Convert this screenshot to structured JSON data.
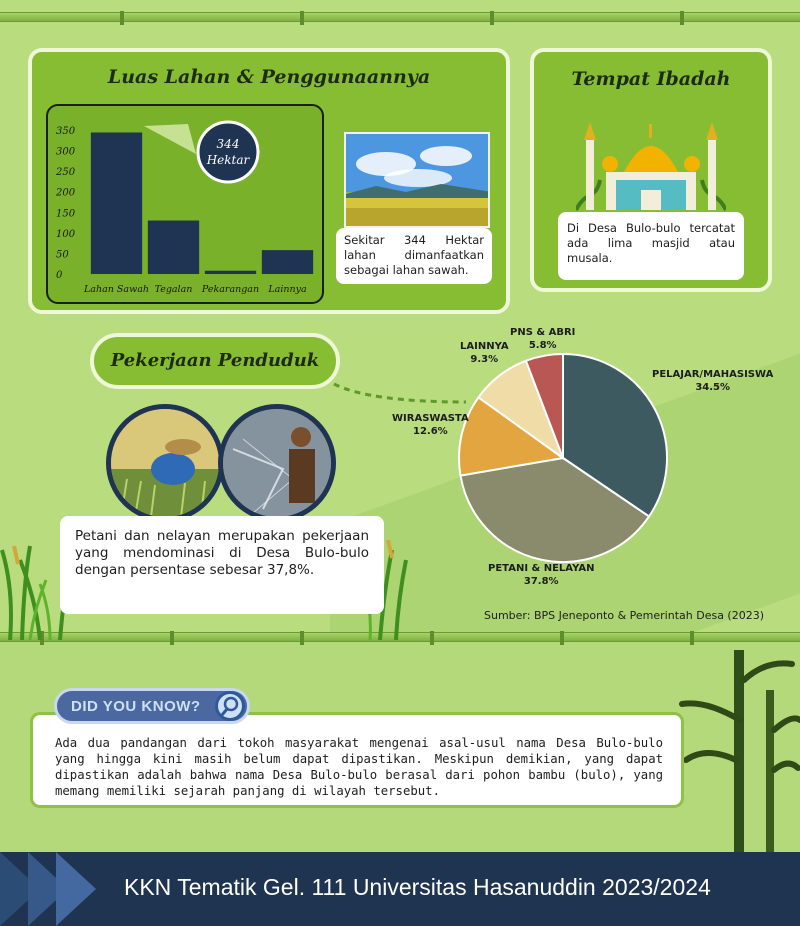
{
  "land": {
    "title": "Luas Lahan & Penggunaannya",
    "callout_value": "344",
    "callout_unit": "Hektar",
    "caption": "Sekitar 344 Hektar lahan dimanfaatkan sebagai lahan sawah."
  },
  "chart_data": {
    "type": "bar",
    "categories": [
      "Lahan Sawah",
      "Tegalan",
      "Pekarangan",
      "Lainnya"
    ],
    "values": [
      344,
      130,
      8,
      58
    ],
    "ylim": [
      0,
      350
    ],
    "yticks": [
      0,
      50,
      100,
      150,
      200,
      250,
      300,
      350
    ],
    "bar_color": "#1f3352"
  },
  "worship": {
    "title": "Tempat Ibadah",
    "caption": "Di Desa Bulo-bulo tercatat ada lima masjid atau musala."
  },
  "occupation": {
    "title": "Pekerjaan Penduduk",
    "caption": "Petani dan nelayan merupakan pekerjaan yang mendominasi di Desa Bulo-bulo dengan persentase sebesar 37,8%.",
    "source": "Sumber: BPS Jeneponto & Pemerintah Desa (2023)",
    "pie": [
      {
        "name": "PELAJAR/MAHASISWA",
        "value": 34.5,
        "label": "34.5%",
        "color": "#3d5a61"
      },
      {
        "name": "PETANI & NELAYAN",
        "value": 37.8,
        "label": "37.8%",
        "color": "#8a8a6c"
      },
      {
        "name": "WIRASWASTA",
        "value": 12.6,
        "label": "12.6%",
        "color": "#e2a540"
      },
      {
        "name": "LAINNYA",
        "value": 9.3,
        "label": "9.3%",
        "color": "#efdca6"
      },
      {
        "name": "PNS & ABRI",
        "value": 5.8,
        "label": "5.8%",
        "color": "#b95755"
      }
    ]
  },
  "did_you_know": {
    "badge": "DID YOU KNOW?",
    "text": "Ada dua pandangan dari tokoh masyarakat mengenai asal-usul nama Desa Bulo-bulo yang hingga kini masih belum dapat dipastikan. Meskipun demikian, yang dapat dipastikan adalah bahwa nama Desa Bulo-bulo berasal dari pohon bambu (bulo), yang memang memiliki sejarah panjang di wilayah tersebut."
  },
  "footer": {
    "title": "KKN Tematik Gel. 111 Universitas Hasanuddin 2023/2024"
  },
  "icons": {
    "magnifier": "magnifier-icon",
    "mosque": "mosque-icon"
  },
  "colors": {
    "panel_green": "#86bd33",
    "navy": "#1f3352",
    "footer_bg": "#1e3450"
  }
}
